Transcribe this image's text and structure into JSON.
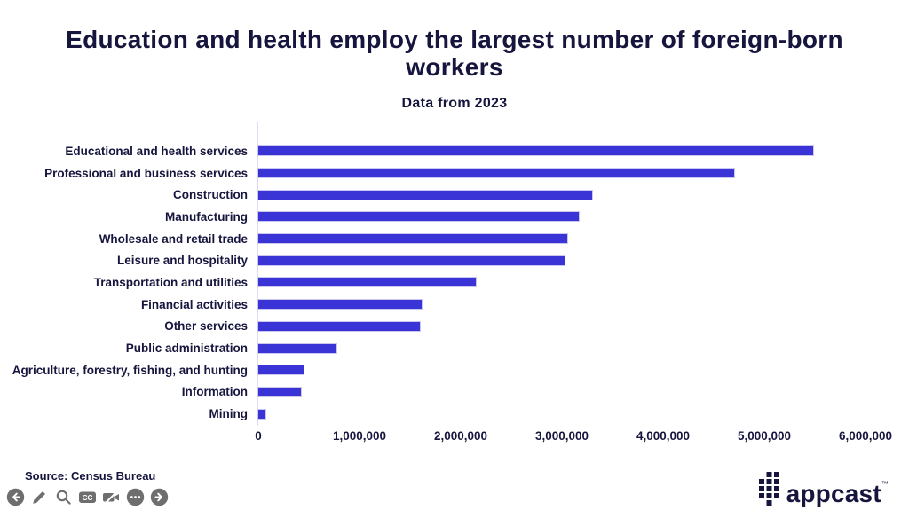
{
  "header": {
    "title": "Education and health employ the largest number of foreign-born workers",
    "subtitle": "Data from 2023"
  },
  "chart_data": {
    "type": "bar",
    "orientation": "horizontal",
    "title": "Education and health employ the largest number of foreign-born workers",
    "subtitle": "Data from 2023",
    "categories": [
      "Educational and health services",
      "Professional and business services",
      "Construction",
      "Manufacturing",
      "Wholesale and retail trade",
      "Leisure and hospitality",
      "Transportation and utilities",
      "Financial activities",
      "Other services",
      "Public administration",
      "Agriculture, forestry, fishing, and hunting",
      "Information",
      "Mining"
    ],
    "values": [
      5480000,
      4700000,
      3300000,
      3170000,
      3050000,
      3030000,
      2150000,
      1610000,
      1600000,
      770000,
      450000,
      420000,
      70000
    ],
    "xlabel": "",
    "ylabel": "",
    "xlim": [
      0,
      6000000
    ],
    "xticks": [
      "0",
      "1,000,000",
      "2,000,000",
      "3,000,000",
      "4,000,000",
      "5,000,000",
      "6,000,000"
    ],
    "grid": false,
    "legend_position": "none",
    "bar_color": "#3a33d6"
  },
  "footer": {
    "source": "Source: Census Bureau",
    "cc_label": "CC",
    "player_icons": [
      "circle-arrow-left",
      "pencil",
      "magnifier",
      "closed-captions",
      "video-off",
      "ellipsis",
      "circle-arrow-right"
    ]
  },
  "branding": {
    "logo_text": "appcast",
    "trademark": "™"
  },
  "colors": {
    "text_navy": "#16153e",
    "bar_blue": "#3a33d6",
    "axis_line": "#dcdcf4",
    "icon_gray": "#6e6e6e"
  }
}
